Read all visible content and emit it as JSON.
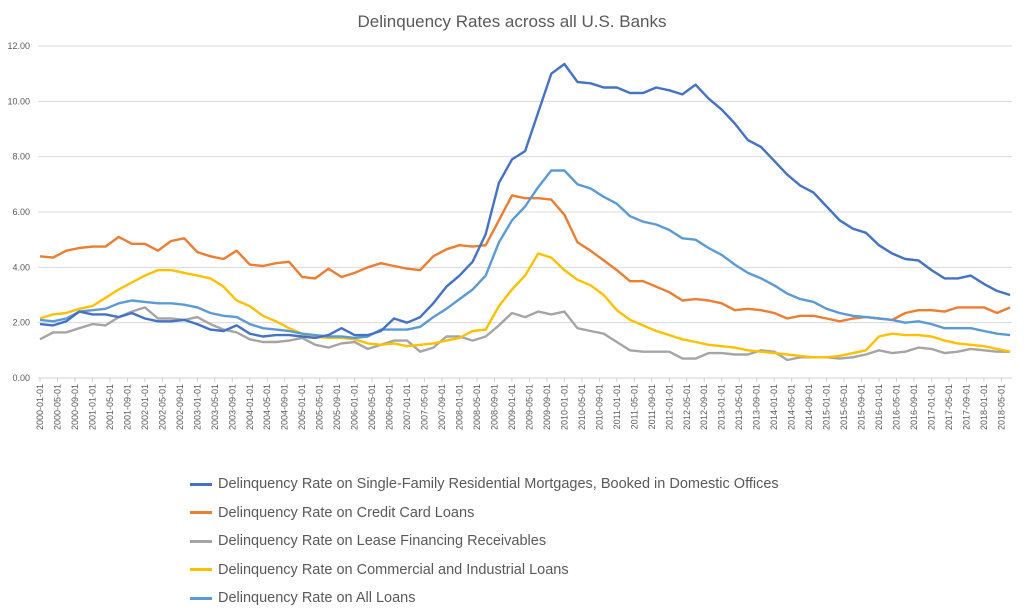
{
  "chart_data": {
    "type": "line",
    "title": "Delinquency Rates across all U.S. Banks",
    "xlabel": "",
    "ylabel": "",
    "ylim": [
      0,
      12
    ],
    "y_ticks": [
      "0.00",
      "2.00",
      "4.00",
      "6.00",
      "8.00",
      "10.00",
      "12.00"
    ],
    "grid": "horizontal",
    "legend_position": "bottom",
    "x_tick_labels": [
      "2000-01-01",
      "2000-05-01",
      "2000-09-01",
      "2001-01-01",
      "2001-05-01",
      "2001-09-01",
      "2002-01-01",
      "2002-05-01",
      "2002-09-01",
      "2003-01-01",
      "2003-05-01",
      "2003-09-01",
      "2004-01-01",
      "2004-05-01",
      "2004-09-01",
      "2005-01-01",
      "2005-05-01",
      "2005-09-01",
      "2006-01-01",
      "2006-05-01",
      "2006-09-01",
      "2007-01-01",
      "2007-05-01",
      "2007-09-01",
      "2008-01-01",
      "2008-05-01",
      "2008-09-01",
      "2009-01-01",
      "2009-05-01",
      "2009-09-01",
      "2010-01-01",
      "2010-05-01",
      "2010-09-01",
      "2011-01-01",
      "2011-05-01",
      "2011-09-01",
      "2012-01-01",
      "2012-05-01",
      "2012-09-01",
      "2013-01-01",
      "2013-05-01",
      "2013-09-01",
      "2014-01-01",
      "2014-05-01",
      "2014-09-01",
      "2015-01-01",
      "2015-05-01",
      "2015-09-01",
      "2016-01-01",
      "2016-05-01",
      "2016-09-01",
      "2017-01-01",
      "2017-05-01",
      "2017-09-01",
      "2018-01-01",
      "2018-05-01"
    ],
    "x": [
      "2000-01-01",
      "2000-04-01",
      "2000-07-01",
      "2000-10-01",
      "2001-01-01",
      "2001-04-01",
      "2001-07-01",
      "2001-10-01",
      "2002-01-01",
      "2002-04-01",
      "2002-07-01",
      "2002-10-01",
      "2003-01-01",
      "2003-04-01",
      "2003-07-01",
      "2003-10-01",
      "2004-01-01",
      "2004-04-01",
      "2004-07-01",
      "2004-10-01",
      "2005-01-01",
      "2005-04-01",
      "2005-07-01",
      "2005-10-01",
      "2006-01-01",
      "2006-04-01",
      "2006-07-01",
      "2006-10-01",
      "2007-01-01",
      "2007-04-01",
      "2007-07-01",
      "2007-10-01",
      "2008-01-01",
      "2008-04-01",
      "2008-07-01",
      "2008-10-01",
      "2009-01-01",
      "2009-04-01",
      "2009-07-01",
      "2009-10-01",
      "2010-01-01",
      "2010-04-01",
      "2010-07-01",
      "2010-10-01",
      "2011-01-01",
      "2011-04-01",
      "2011-07-01",
      "2011-10-01",
      "2012-01-01",
      "2012-04-01",
      "2012-07-01",
      "2012-10-01",
      "2013-01-01",
      "2013-04-01",
      "2013-07-01",
      "2013-10-01",
      "2014-01-01",
      "2014-04-01",
      "2014-07-01",
      "2014-10-01",
      "2015-01-01",
      "2015-04-01",
      "2015-07-01",
      "2015-10-01",
      "2016-01-01",
      "2016-04-01",
      "2016-07-01",
      "2016-10-01",
      "2017-01-01",
      "2017-04-01",
      "2017-07-01",
      "2017-10-01",
      "2018-01-01",
      "2018-04-01",
      "2018-07-01"
    ],
    "series": [
      {
        "name": "Delinquency Rate on Single-Family Residential Mortgages, Booked in Domestic Offices",
        "color": "#4472C4",
        "values": [
          1.95,
          1.9,
          2.05,
          2.4,
          2.3,
          2.3,
          2.2,
          2.35,
          2.15,
          2.05,
          2.05,
          2.1,
          1.95,
          1.75,
          1.7,
          1.9,
          1.6,
          1.5,
          1.55,
          1.55,
          1.5,
          1.45,
          1.55,
          1.8,
          1.55,
          1.55,
          1.7,
          2.15,
          2.0,
          2.2,
          2.7,
          3.3,
          3.7,
          4.2,
          5.2,
          7.05,
          7.9,
          8.2,
          9.6,
          11.0,
          11.35,
          10.7,
          10.65,
          10.5,
          10.5,
          10.3,
          10.3,
          10.5,
          10.4,
          10.25,
          10.6,
          10.1,
          9.7,
          9.2,
          8.6,
          8.35,
          7.85,
          7.35,
          6.95,
          6.7,
          6.2,
          5.7,
          5.4,
          5.25,
          4.8,
          4.5,
          4.3,
          4.25,
          3.9,
          3.6,
          3.6,
          3.7,
          3.4,
          3.15,
          3.0
        ]
      },
      {
        "name": "Delinquency Rate on Credit Card Loans",
        "color": "#ED7D31",
        "values": [
          4.4,
          4.35,
          4.6,
          4.7,
          4.75,
          4.75,
          5.1,
          4.85,
          4.85,
          4.6,
          4.95,
          5.05,
          4.55,
          4.4,
          4.3,
          4.6,
          4.1,
          4.05,
          4.15,
          4.2,
          3.65,
          3.6,
          3.95,
          3.65,
          3.8,
          4.0,
          4.15,
          4.05,
          3.95,
          3.9,
          4.4,
          4.65,
          4.8,
          4.75,
          4.8,
          5.7,
          6.6,
          6.5,
          6.5,
          6.45,
          5.9,
          4.9,
          4.6,
          4.25,
          3.9,
          3.5,
          3.5,
          3.3,
          3.1,
          2.8,
          2.85,
          2.8,
          2.7,
          2.45,
          2.5,
          2.45,
          2.35,
          2.15,
          2.25,
          2.25,
          2.15,
          2.05,
          2.15,
          2.2,
          2.15,
          2.1,
          2.35,
          2.45,
          2.45,
          2.4,
          2.55,
          2.55,
          2.55,
          2.35,
          2.55
        ]
      },
      {
        "name": "Delinquency Rate on Lease Financing Receivables",
        "color": "#A5A5A5",
        "values": [
          1.4,
          1.65,
          1.65,
          1.8,
          1.95,
          1.9,
          2.2,
          2.4,
          2.55,
          2.15,
          2.15,
          2.1,
          2.2,
          1.95,
          1.75,
          1.65,
          1.4,
          1.3,
          1.3,
          1.35,
          1.45,
          1.2,
          1.1,
          1.25,
          1.3,
          1.05,
          1.2,
          1.35,
          1.35,
          0.95,
          1.1,
          1.5,
          1.5,
          1.35,
          1.5,
          1.9,
          2.35,
          2.2,
          2.4,
          2.3,
          2.4,
          1.8,
          1.7,
          1.6,
          1.3,
          1.0,
          0.95,
          0.95,
          0.95,
          0.7,
          0.7,
          0.9,
          0.9,
          0.85,
          0.85,
          1.0,
          0.95,
          0.65,
          0.75,
          0.75,
          0.75,
          0.7,
          0.75,
          0.85,
          1.0,
          0.9,
          0.95,
          1.1,
          1.05,
          0.9,
          0.95,
          1.05,
          1.0,
          0.95,
          0.95
        ]
      },
      {
        "name": "Delinquency Rate on Commercial and Industrial Loans",
        "color": "#FFC000",
        "values": [
          2.15,
          2.3,
          2.35,
          2.5,
          2.6,
          2.9,
          3.2,
          3.45,
          3.7,
          3.9,
          3.9,
          3.8,
          3.7,
          3.6,
          3.3,
          2.8,
          2.6,
          2.25,
          2.05,
          1.8,
          1.6,
          1.5,
          1.45,
          1.45,
          1.4,
          1.25,
          1.2,
          1.25,
          1.15,
          1.2,
          1.25,
          1.35,
          1.45,
          1.7,
          1.75,
          2.6,
          3.2,
          3.7,
          4.5,
          4.35,
          3.9,
          3.55,
          3.35,
          3.0,
          2.45,
          2.1,
          1.9,
          1.7,
          1.55,
          1.4,
          1.3,
          1.2,
          1.15,
          1.1,
          1.0,
          0.95,
          0.9,
          0.85,
          0.8,
          0.75,
          0.75,
          0.8,
          0.9,
          1.0,
          1.5,
          1.6,
          1.55,
          1.55,
          1.5,
          1.35,
          1.25,
          1.2,
          1.15,
          1.05,
          0.95
        ]
      },
      {
        "name": "Delinquency Rate on All Loans",
        "color": "#5B9BD5",
        "values": [
          2.1,
          2.05,
          2.15,
          2.4,
          2.45,
          2.5,
          2.7,
          2.8,
          2.75,
          2.7,
          2.7,
          2.65,
          2.55,
          2.35,
          2.25,
          2.2,
          1.95,
          1.8,
          1.75,
          1.7,
          1.6,
          1.55,
          1.5,
          1.5,
          1.45,
          1.5,
          1.75,
          1.75,
          1.75,
          1.85,
          2.2,
          2.5,
          2.85,
          3.2,
          3.7,
          4.9,
          5.7,
          6.2,
          6.9,
          7.5,
          7.5,
          7.0,
          6.85,
          6.55,
          6.3,
          5.85,
          5.65,
          5.55,
          5.35,
          5.05,
          5.0,
          4.7,
          4.45,
          4.1,
          3.8,
          3.6,
          3.35,
          3.05,
          2.85,
          2.75,
          2.5,
          2.35,
          2.25,
          2.2,
          2.15,
          2.1,
          2.0,
          2.05,
          1.95,
          1.8,
          1.8,
          1.8,
          1.7,
          1.6,
          1.55
        ]
      }
    ]
  }
}
